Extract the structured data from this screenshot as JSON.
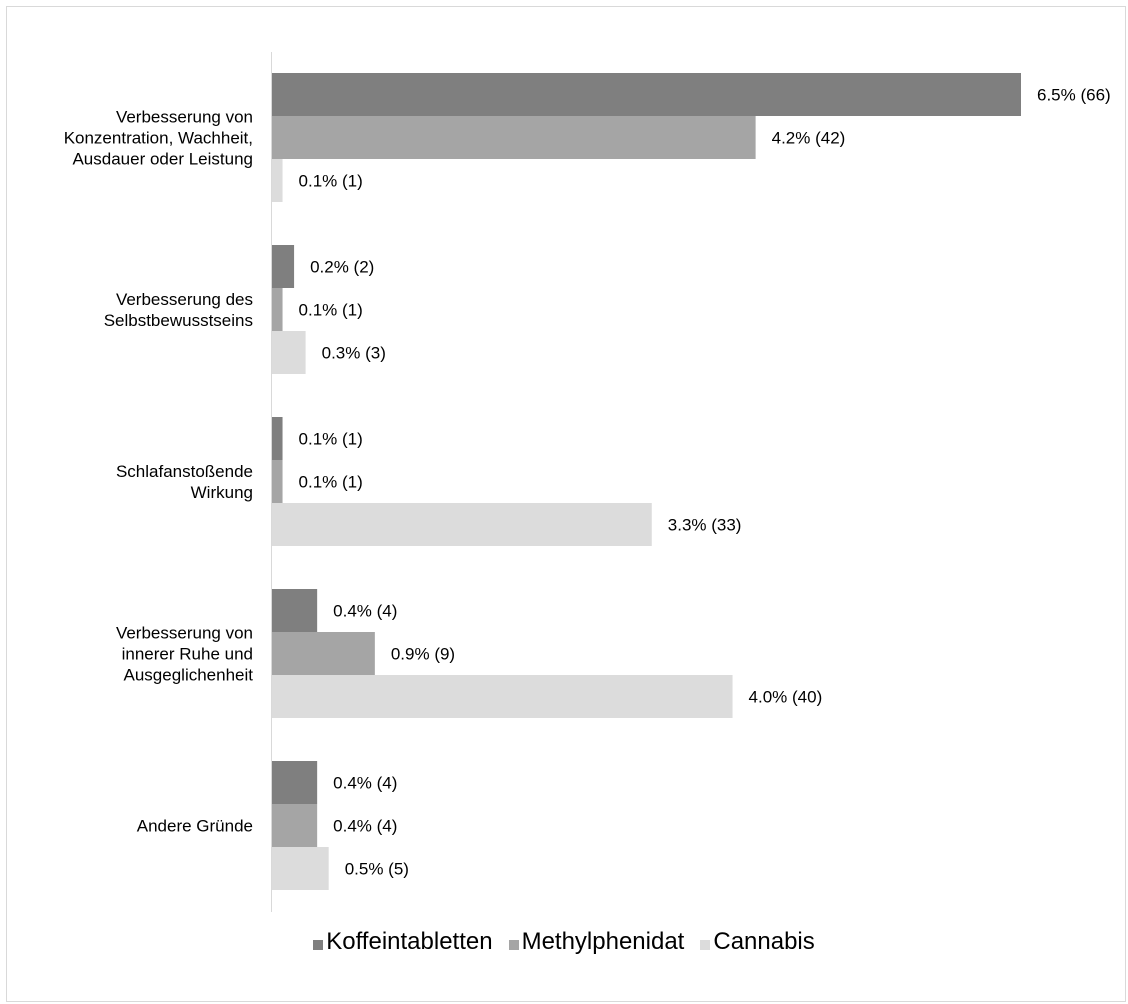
{
  "chart_data": {
    "type": "bar",
    "orientation": "horizontal",
    "title": "",
    "xlabel": "",
    "ylabel": "",
    "categories": [
      "Verbesserung von\nKonzentration, Wachheit,\nAusdauer oder Leistung",
      "Verbesserung des\nSelbstbewusstseins",
      "Schlafanstoßende\nWirkung",
      "Verbesserung von\ninnerer Ruhe und\nAusgeglichenheit",
      "Andere Gründe"
    ],
    "series": [
      {
        "name": "Koffeintabletten",
        "color": "#7f7f7f",
        "values": [
          6.5,
          0.2,
          0.1,
          0.4,
          0.4
        ],
        "labels": [
          "6.5% (66)",
          "0.2% (2)",
          "0.1% (1)",
          "0.4% (4)",
          "0.4% (4)"
        ]
      },
      {
        "name": "Methylphenidat",
        "color": "#a5a5a5",
        "values": [
          4.2,
          0.1,
          0.1,
          0.9,
          0.4
        ],
        "labels": [
          "4.2% (42)",
          "0.1% (1)",
          "0.1% (1)",
          "0.9% (9)",
          "0.4% (4)"
        ]
      },
      {
        "name": "Cannabis",
        "color": "#dcdcdc",
        "values": [
          0.1,
          0.3,
          3.3,
          4.0,
          0.5
        ],
        "labels": [
          "0.1% (1)",
          "0.3% (3)",
          "3.3% (33)",
          "4.0% (40)",
          "0.5% (5)"
        ]
      }
    ],
    "xlim": [
      0,
      6.5
    ],
    "grid": false,
    "legend_position": "bottom"
  }
}
